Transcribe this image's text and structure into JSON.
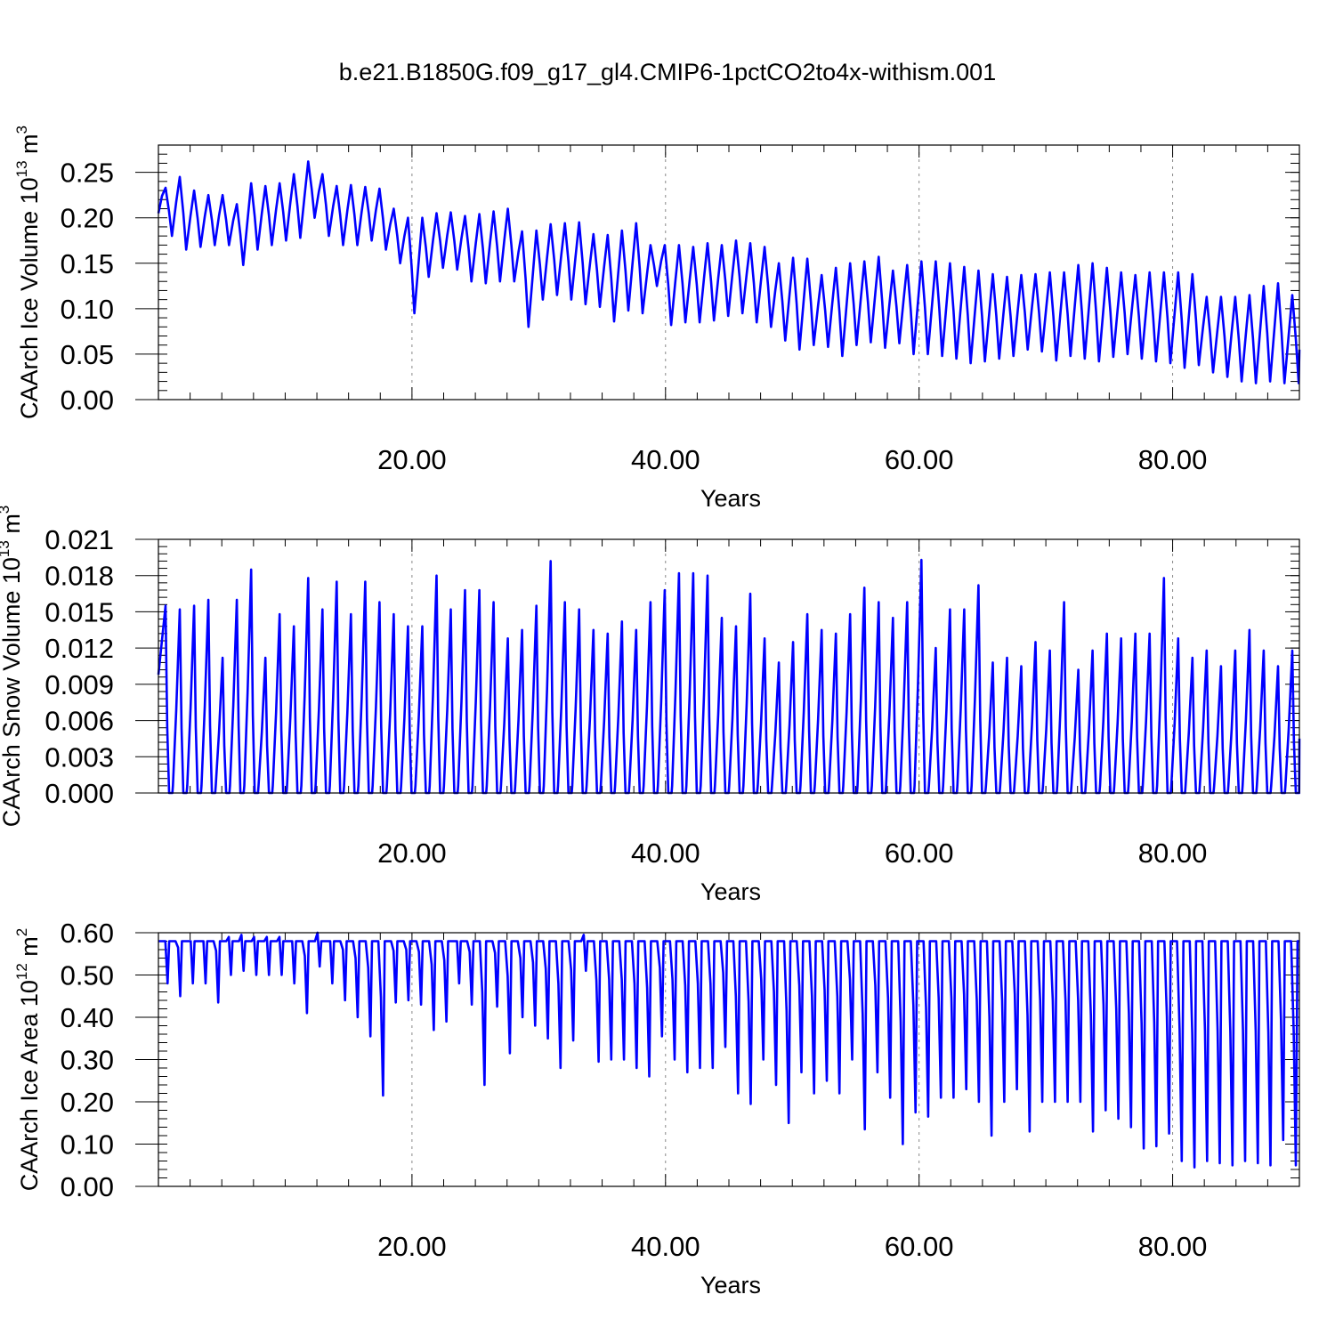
{
  "figure": {
    "title": "b.e21.B1850G.f09_g17_gl4.CMIP6-1pctCO2to4x-withism.001"
  },
  "colors": {
    "series": "#0000ff",
    "axis": "#000000",
    "grid": "#888888",
    "background": "#ffffff"
  },
  "chart_data": [
    {
      "type": "line",
      "title": "",
      "xlabel": "Years",
      "ylabel": "CAArch Ice Volume 10",
      "ylabel_exp": "13",
      "ylabel_unit": "m",
      "ylabel_unit_exp": "3",
      "xlim": [
        0,
        90
      ],
      "ylim": [
        0,
        0.28
      ],
      "xticks": [
        20,
        40,
        60,
        80
      ],
      "xtick_labels": [
        "20.00",
        "40.00",
        "60.00",
        "80.00"
      ],
      "yticks": [
        0,
        0.05,
        0.1,
        0.15,
        0.2,
        0.25
      ],
      "ytick_labels": [
        "0.00",
        "0.05",
        "0.10",
        "0.15",
        "0.20",
        "0.25"
      ],
      "grid": "vertical-dashed",
      "legend": "none",
      "series": [
        {
          "max": [
            0.233,
            0.245,
            0.23,
            0.225,
            0.225,
            0.215,
            0.238,
            0.235,
            0.238,
            0.248,
            0.262,
            0.248,
            0.235,
            0.236,
            0.234,
            0.232,
            0.21,
            0.2,
            0.2,
            0.205,
            0.206,
            0.202,
            0.204,
            0.207,
            0.21,
            0.185,
            0.186,
            0.193,
            0.194,
            0.195,
            0.182,
            0.181,
            0.186,
            0.194,
            0.17,
            0.17,
            0.17,
            0.168,
            0.172,
            0.17,
            0.175,
            0.172,
            0.168,
            0.15,
            0.156,
            0.155,
            0.137,
            0.145,
            0.15,
            0.152,
            0.157,
            0.142,
            0.148,
            0.152,
            0.152,
            0.15,
            0.146,
            0.142,
            0.138,
            0.135,
            0.137,
            0.138,
            0.14,
            0.14,
            0.148,
            0.15,
            0.145,
            0.14,
            0.137,
            0.14,
            0.14,
            0.14,
            0.138,
            0.113,
            0.113,
            0.113,
            0.115,
            0.125,
            0.128,
            0.115
          ],
          "min": [
            0.18,
            0.165,
            0.168,
            0.17,
            0.17,
            0.148,
            0.165,
            0.17,
            0.175,
            0.178,
            0.2,
            0.18,
            0.17,
            0.17,
            0.175,
            0.165,
            0.15,
            0.095,
            0.135,
            0.145,
            0.143,
            0.13,
            0.128,
            0.13,
            0.13,
            0.08,
            0.11,
            0.115,
            0.11,
            0.105,
            0.102,
            0.086,
            0.098,
            0.095,
            0.125,
            0.082,
            0.085,
            0.085,
            0.087,
            0.092,
            0.095,
            0.085,
            0.08,
            0.065,
            0.055,
            0.06,
            0.058,
            0.048,
            0.06,
            0.063,
            0.057,
            0.062,
            0.05,
            0.05,
            0.048,
            0.045,
            0.04,
            0.042,
            0.045,
            0.048,
            0.055,
            0.053,
            0.043,
            0.048,
            0.045,
            0.042,
            0.047,
            0.05,
            0.045,
            0.042,
            0.04,
            0.035,
            0.038,
            0.03,
            0.025,
            0.02,
            0.018,
            0.02,
            0.018,
            0.018
          ],
          "start": 0.205,
          "end": 0.055
        }
      ]
    },
    {
      "type": "line",
      "title": "",
      "xlabel": "Years",
      "ylabel": "CAArch Snow Volume 10",
      "ylabel_exp": "13",
      "ylabel_unit": "m",
      "ylabel_unit_exp": "3",
      "xlim": [
        0,
        90
      ],
      "ylim": [
        0,
        0.021
      ],
      "xticks": [
        20,
        40,
        60,
        80
      ],
      "xtick_labels": [
        "20.00",
        "40.00",
        "60.00",
        "80.00"
      ],
      "yticks": [
        0,
        0.003,
        0.006,
        0.009,
        0.012,
        0.015,
        0.018,
        0.021
      ],
      "ytick_labels": [
        "0.000",
        "0.003",
        "0.006",
        "0.009",
        "0.012",
        "0.015",
        "0.018",
        "0.021"
      ],
      "grid": "vertical-dashed",
      "legend": "none",
      "series": [
        {
          "peaks": [
            0.0155,
            0.0152,
            0.0155,
            0.016,
            0.0112,
            0.016,
            0.0185,
            0.0112,
            0.0148,
            0.0138,
            0.0178,
            0.0152,
            0.0175,
            0.0148,
            0.0175,
            0.0158,
            0.0148,
            0.0138,
            0.0138,
            0.018,
            0.0152,
            0.0168,
            0.0168,
            0.0158,
            0.0128,
            0.0135,
            0.0155,
            0.0192,
            0.0158,
            0.0152,
            0.0135,
            0.0132,
            0.0142,
            0.0135,
            0.0158,
            0.0168,
            0.0182,
            0.0182,
            0.018,
            0.0145,
            0.0138,
            0.0165,
            0.0128,
            0.0108,
            0.0125,
            0.0148,
            0.0135,
            0.0132,
            0.0148,
            0.017,
            0.0158,
            0.0145,
            0.0158,
            0.0193,
            0.012,
            0.0152,
            0.0152,
            0.0172,
            0.0108,
            0.0112,
            0.0105,
            0.0125,
            0.0118,
            0.0158,
            0.0102,
            0.0118,
            0.0132,
            0.0128,
            0.0132,
            0.0132,
            0.0178,
            0.0128,
            0.0112,
            0.0118,
            0.0105,
            0.0118,
            0.0135,
            0.0118,
            0.0105,
            0.0118
          ],
          "start": 0.0098,
          "end": 0.0045
        }
      ]
    },
    {
      "type": "line",
      "title": "",
      "xlabel": "Years",
      "ylabel": "CAArch Ice Area 10",
      "ylabel_exp": "12",
      "ylabel_unit": "m",
      "ylabel_unit_exp": "2",
      "xlim": [
        0,
        90
      ],
      "ylim": [
        0,
        0.6
      ],
      "xticks": [
        20,
        40,
        60,
        80
      ],
      "xtick_labels": [
        "20.00",
        "40.00",
        "60.00",
        "80.00"
      ],
      "yticks": [
        0,
        0.1,
        0.2,
        0.3,
        0.4,
        0.5,
        0.6
      ],
      "ytick_labels": [
        "0.00",
        "0.10",
        "0.20",
        "0.30",
        "0.40",
        "0.50",
        "0.60"
      ],
      "grid": "vertical-dashed",
      "legend": "none",
      "series": [
        {
          "plateau": 0.58,
          "min": [
            0.48,
            0.45,
            0.48,
            0.48,
            0.435,
            0.5,
            0.51,
            0.5,
            0.5,
            0.5,
            0.48,
            0.41,
            0.52,
            0.48,
            0.44,
            0.4,
            0.355,
            0.215,
            0.435,
            0.44,
            0.43,
            0.37,
            0.39,
            0.48,
            0.43,
            0.24,
            0.425,
            0.315,
            0.4,
            0.38,
            0.35,
            0.28,
            0.345,
            0.51,
            0.295,
            0.3,
            0.3,
            0.28,
            0.26,
            0.355,
            0.3,
            0.27,
            0.28,
            0.28,
            0.33,
            0.22,
            0.195,
            0.3,
            0.24,
            0.15,
            0.27,
            0.22,
            0.25,
            0.22,
            0.3,
            0.135,
            0.27,
            0.21,
            0.1,
            0.175,
            0.165,
            0.21,
            0.21,
            0.23,
            0.2,
            0.12,
            0.2,
            0.23,
            0.13,
            0.2,
            0.2,
            0.2,
            0.2,
            0.13,
            0.18,
            0.16,
            0.14,
            0.09,
            0.095,
            0.125,
            0.06,
            0.045,
            0.06,
            0.055,
            0.05,
            0.06,
            0.055,
            0.05,
            0.11,
            0.05
          ],
          "start": 0.58,
          "end": 0.58
        }
      ]
    }
  ]
}
